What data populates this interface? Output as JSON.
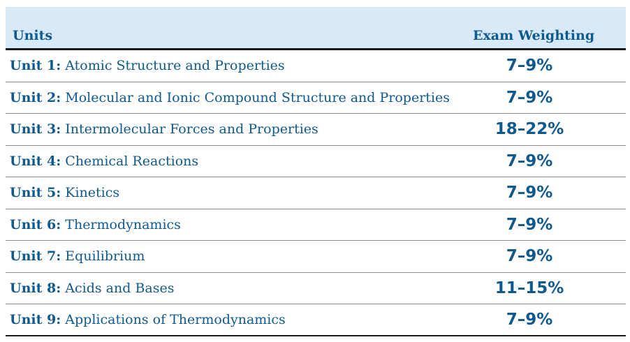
{
  "header": {
    "units": "Units",
    "weighting": "Exam Weighting"
  },
  "rows": [
    {
      "unit": "Unit 1:",
      "title": "Atomic Structure and Properties",
      "weight": "7–9%"
    },
    {
      "unit": "Unit 2:",
      "title": "Molecular and Ionic Compound Structure and Properties",
      "weight": "7–9%"
    },
    {
      "unit": "Unit 3:",
      "title": "Intermolecular Forces and Properties",
      "weight": "18–22%"
    },
    {
      "unit": "Unit 4:",
      "title": "Chemical Reactions",
      "weight": "7–9%"
    },
    {
      "unit": "Unit 5:",
      "title": "Kinetics",
      "weight": "7–9%"
    },
    {
      "unit": "Unit 6:",
      "title": "Thermodynamics",
      "weight": "7–9%"
    },
    {
      "unit": "Unit 7:",
      "title": "Equilibrium",
      "weight": "7–9%"
    },
    {
      "unit": "Unit 8:",
      "title": "Acids and Bases",
      "weight": "11–15%"
    },
    {
      "unit": "Unit 9:",
      "title": "Applications of Thermodynamics",
      "weight": "7–9%"
    }
  ],
  "colors": {
    "text": "#0f5a8c",
    "header_bg": "#d8eaf8"
  }
}
